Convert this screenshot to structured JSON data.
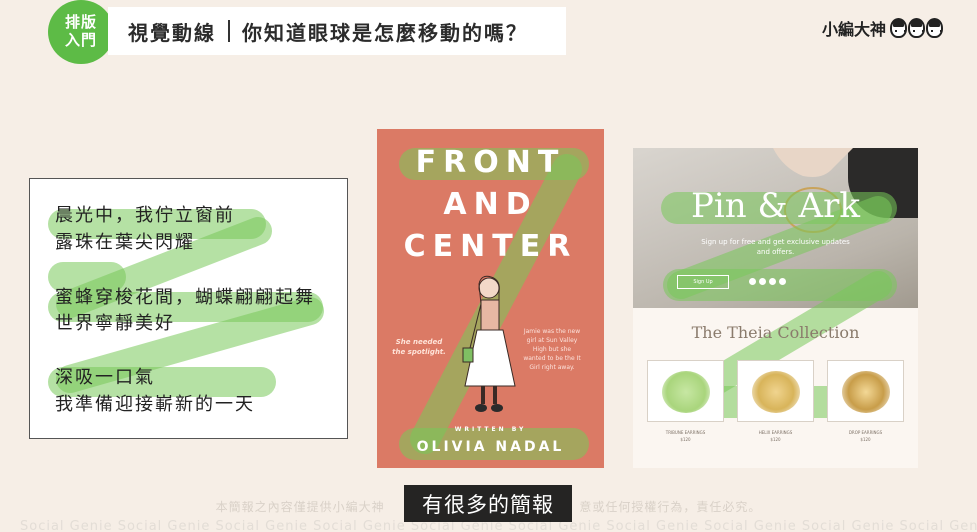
{
  "header": {
    "badge_line1": "排版",
    "badge_line2": "入門",
    "title_left": "視覺動線",
    "title_right": "你知道眼球是怎麼移動的嗎？",
    "logo_text": "小編大神",
    "logo_icon": "three-faces-icon"
  },
  "panel_text": {
    "lines": [
      "晨光中，我佇立窗前",
      "露珠在葉尖閃耀",
      "蜜蜂穿梭花間，蝴蝶翩翩起舞",
      "世界寧靜美好",
      "深吸一口氣",
      "我準備迎接嶄新的一天"
    ]
  },
  "panel_book": {
    "title1": "FRONT",
    "title2": "AND",
    "title3": "CENTER",
    "tagline_left_1": "She needed",
    "tagline_left_2": "the spotlight.",
    "blurb_1": "Jamie was the new",
    "blurb_2": "girl at Sun Valley",
    "blurb_3": "High but she",
    "blurb_4": "wanted to be the It",
    "blurb_5": "Girl right away.",
    "written_by": "WRITTEN BY",
    "author": "OLIVIA NADAL"
  },
  "panel_web": {
    "brand": "Pin & Ark",
    "signup_1": "Sign up for free and get exclusive updates",
    "signup_2": "and offers.",
    "button": "Sign Up",
    "collection": "The Theia Collection",
    "products": [
      {
        "name": "TRIBUNE EARRINGS",
        "price": "$120"
      },
      {
        "name": "HELIX EARRINGS",
        "price": "$120"
      },
      {
        "name": "DROP EARRINGS",
        "price": "$120"
      }
    ]
  },
  "footer": {
    "disclaimer": "本簡報之內容僅提供小編大神",
    "disclaimer_2": "意或任何授權行為，責任必究。",
    "watermark": "Social Genie   Social Genie   Social Genie   Social Genie   Social Genie   Social Genie   Social Genie   Social Genie   Social Genie   Social Genie",
    "caption": "有很多的簡報"
  },
  "colors": {
    "accent_green": "#5dbb46",
    "book_bg": "#db7a65",
    "page_bg": "#f6eee6"
  }
}
